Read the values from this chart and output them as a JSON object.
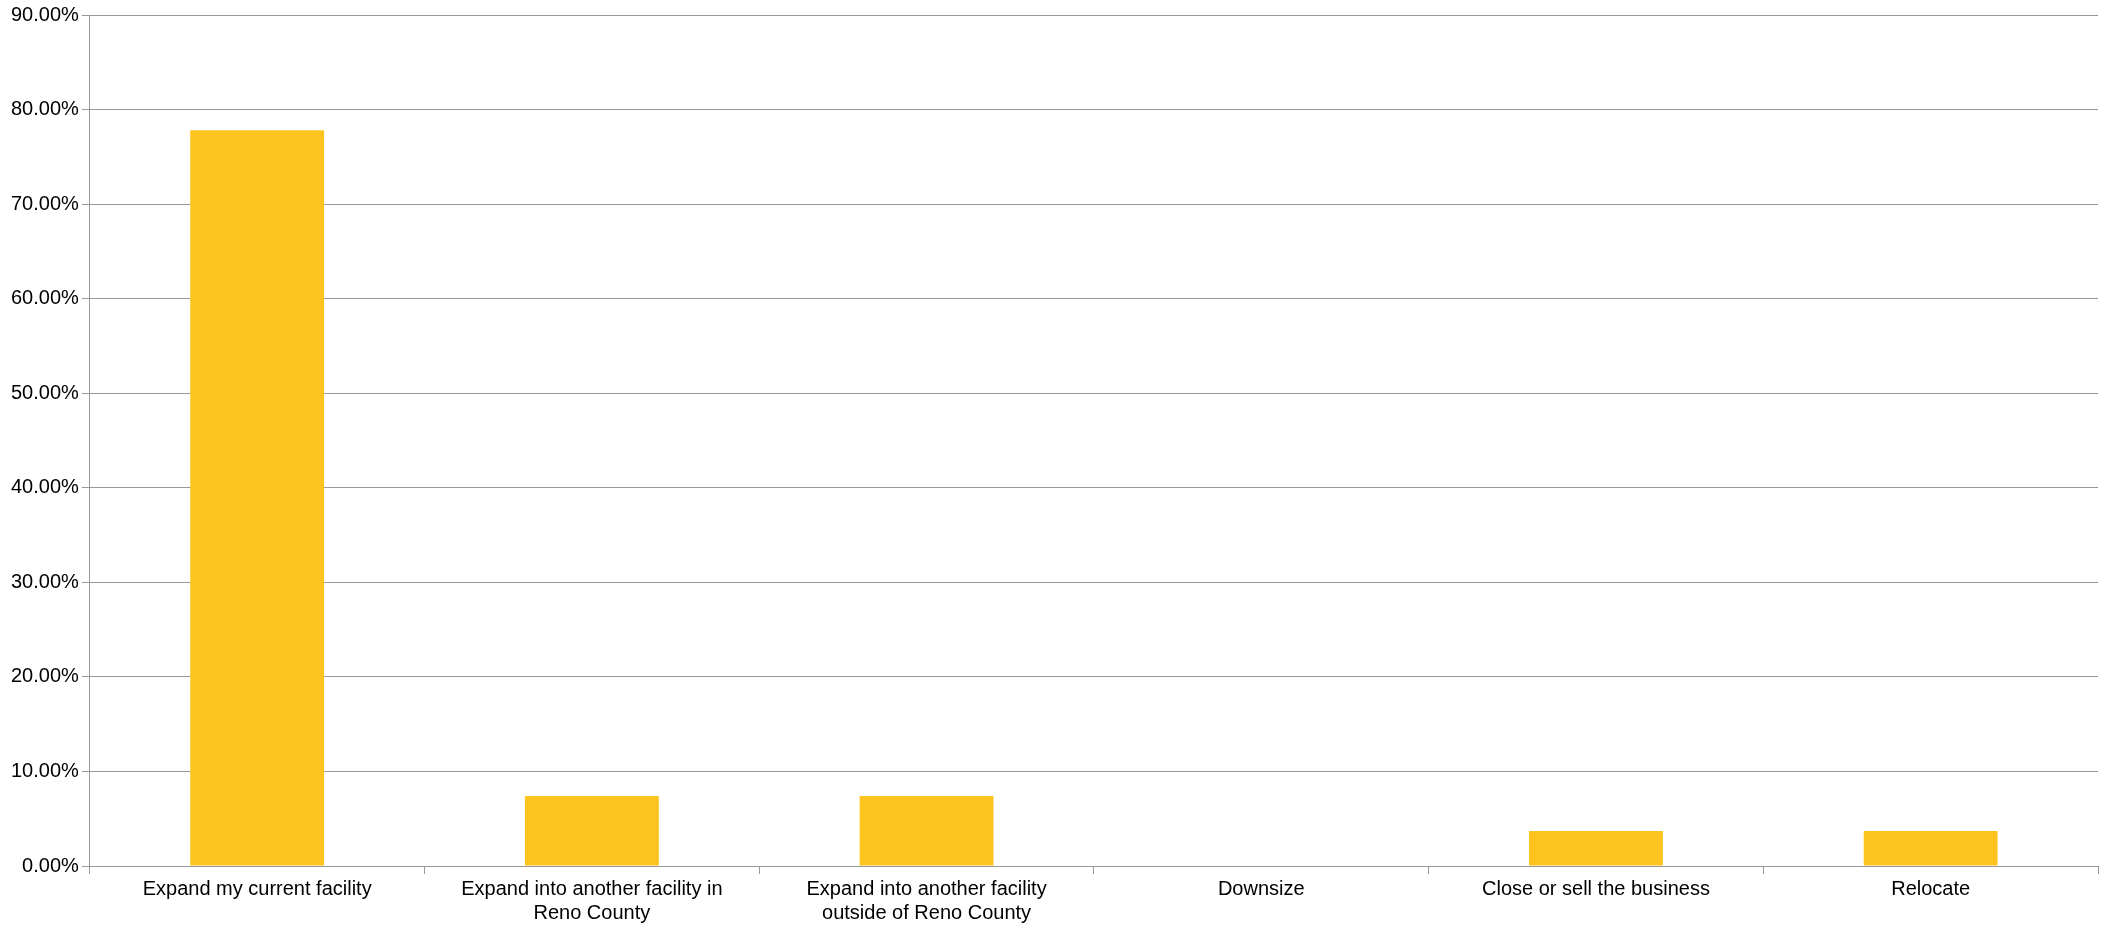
{
  "chart_data": {
    "type": "bar",
    "categories": [
      "Expand my current facility",
      "Expand into another facility in Reno County",
      "Expand into another facility outside of Reno County",
      "Downsize",
      "Close or sell the business",
      "Relocate"
    ],
    "values": [
      77.8,
      7.4,
      7.4,
      0,
      3.7,
      3.7
    ],
    "color": "#fdc41f",
    "ylim": [
      0,
      90
    ],
    "yticks": [
      {
        "value": 0,
        "label": "0.00%"
      },
      {
        "value": 10,
        "label": "10.00%"
      },
      {
        "value": 20,
        "label": "20.00%"
      },
      {
        "value": 30,
        "label": "30.00%"
      },
      {
        "value": 40,
        "label": "40.00%"
      },
      {
        "value": 50,
        "label": "50.00%"
      },
      {
        "value": 60,
        "label": "60.00%"
      },
      {
        "value": 70,
        "label": "70.00%"
      },
      {
        "value": 80,
        "label": "80.00%"
      },
      {
        "value": 90,
        "label": "90.00%"
      }
    ],
    "grid": "y",
    "legend": false
  }
}
